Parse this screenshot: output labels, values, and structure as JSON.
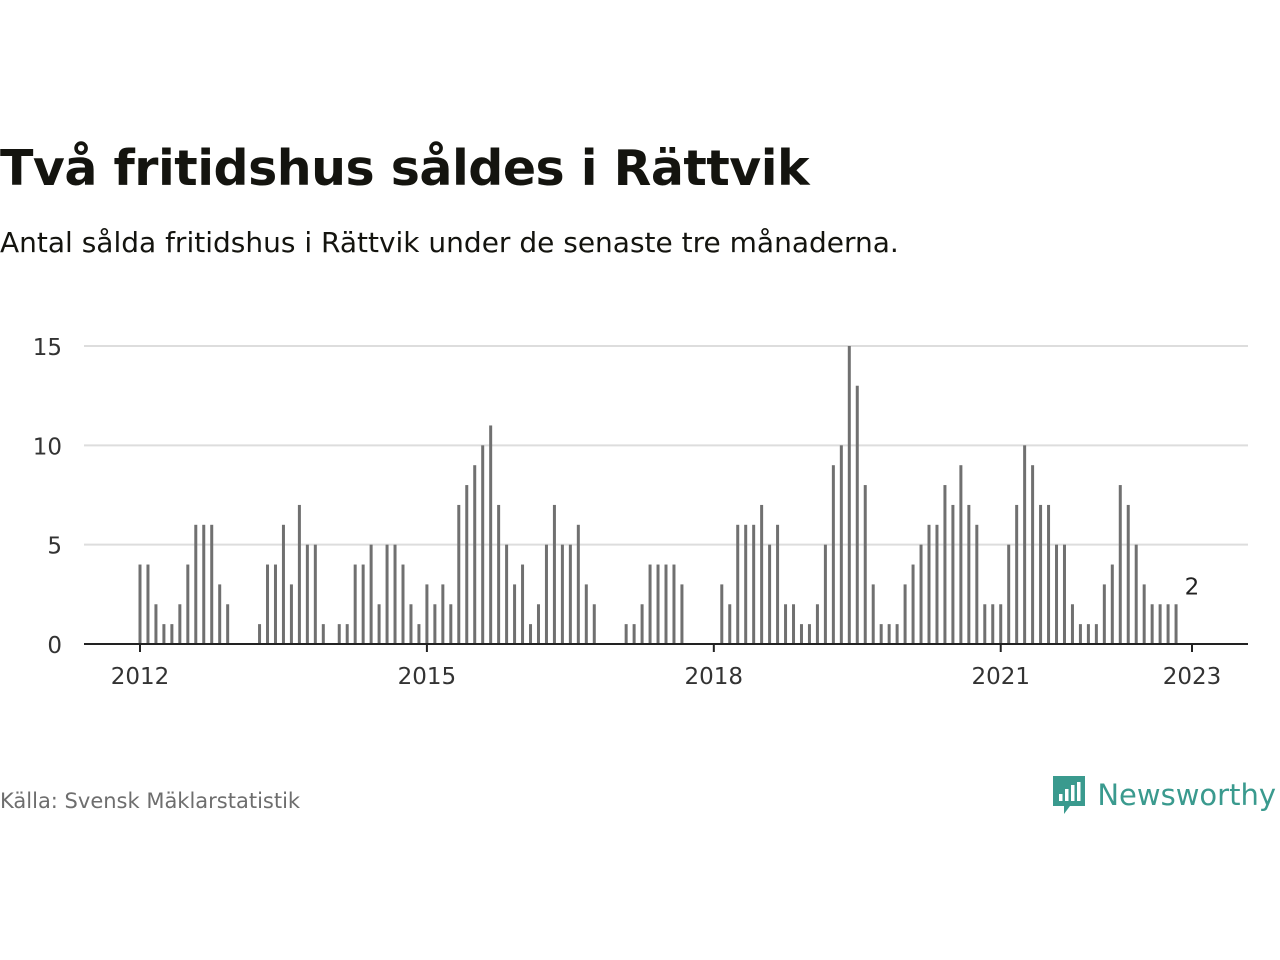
{
  "title": "Två fritidshus såldes i Rättvik",
  "subtitle": "Antal sålda fritidshus i Rättvik under de senaste tre månaderna.",
  "source": "Källa: Svensk Mäklarstatistik",
  "brand": {
    "name": "Newsworthy",
    "icon": "newsworthy-logo-icon",
    "color": "#3a9a8e"
  },
  "colors": {
    "bar": "#707070",
    "highlight": "#1aa09a",
    "grid": "#dddddd",
    "axis": "#222222"
  },
  "chart_data": {
    "type": "bar",
    "title": "",
    "xlabel": "",
    "ylabel": "",
    "x_start": "2012-01",
    "x_end": "2023-01",
    "ylim": [
      0,
      15
    ],
    "yticks": [
      "0",
      "5",
      "10",
      "15"
    ],
    "xticks": [
      {
        "label": "2012",
        "date": "2012-01"
      },
      {
        "label": "2015",
        "date": "2015-01"
      },
      {
        "label": "2018",
        "date": "2018-01"
      },
      {
        "label": "2021",
        "date": "2021-01"
      },
      {
        "label": "2023",
        "date": "2023-01"
      }
    ],
    "grid": true,
    "highlight": {
      "date": "2023-01",
      "value": 2,
      "label": "2"
    },
    "values": [
      4,
      4,
      2,
      1,
      1,
      2,
      4,
      6,
      6,
      6,
      3,
      2,
      0,
      0,
      0,
      1,
      4,
      4,
      6,
      3,
      7,
      5,
      5,
      1,
      0,
      1,
      1,
      4,
      4,
      5,
      2,
      5,
      5,
      4,
      2,
      1,
      3,
      2,
      3,
      2,
      7,
      8,
      9,
      10,
      11,
      7,
      5,
      3,
      4,
      1,
      2,
      5,
      7,
      5,
      5,
      6,
      3,
      2,
      0,
      0,
      0,
      1,
      1,
      2,
      4,
      4,
      4,
      4,
      3,
      0,
      0,
      0,
      0,
      3,
      2,
      6,
      6,
      6,
      7,
      5,
      6,
      2,
      2,
      1,
      1,
      2,
      5,
      9,
      10,
      15,
      13,
      8,
      3,
      1,
      1,
      1,
      3,
      4,
      5,
      6,
      6,
      8,
      7,
      9,
      7,
      6,
      2,
      2,
      2,
      5,
      7,
      10,
      9,
      7,
      7,
      5,
      5,
      2,
      1,
      1,
      1,
      3,
      4,
      8,
      7,
      5,
      3,
      2,
      2,
      2,
      2
    ]
  }
}
